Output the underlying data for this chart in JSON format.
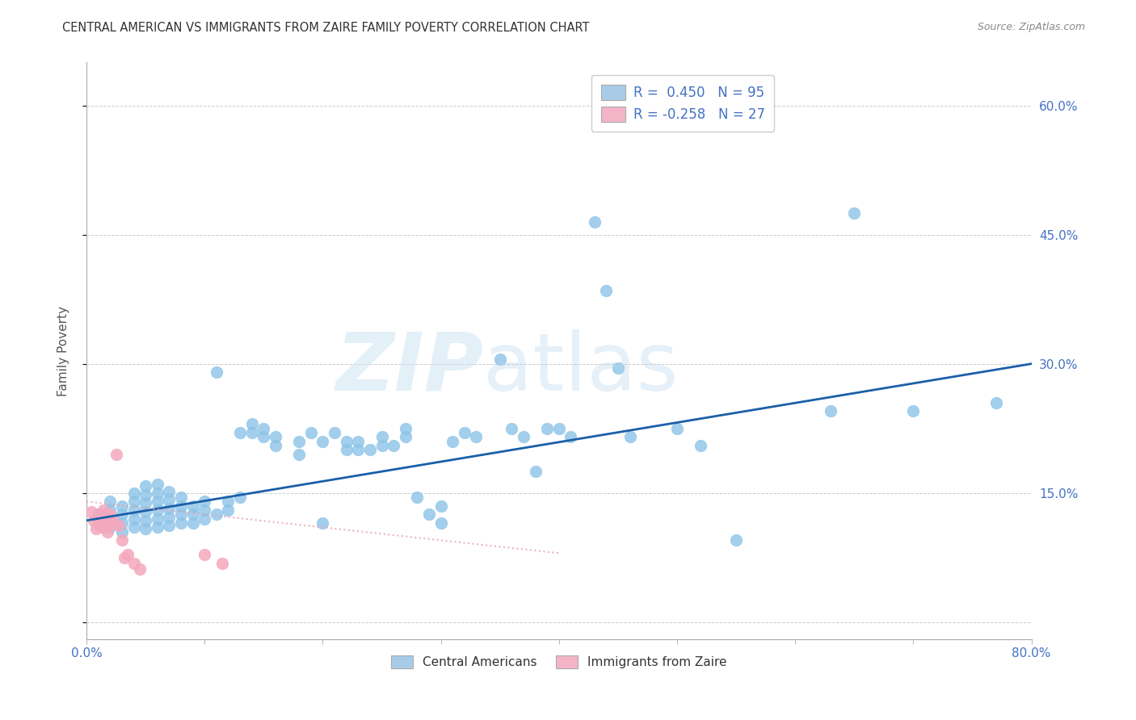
{
  "title": "CENTRAL AMERICAN VS IMMIGRANTS FROM ZAIRE FAMILY POVERTY CORRELATION CHART",
  "source": "Source: ZipAtlas.com",
  "ylabel": "Family Poverty",
  "xlim": [
    0.0,
    0.8
  ],
  "ylim": [
    -0.02,
    0.65
  ],
  "xticks": [
    0.0,
    0.1,
    0.2,
    0.3,
    0.4,
    0.5,
    0.6,
    0.7,
    0.8
  ],
  "yticks": [
    0.0,
    0.15,
    0.3,
    0.45,
    0.6
  ],
  "ytick_labels": [
    "",
    "15.0%",
    "30.0%",
    "45.0%",
    "60.0%"
  ],
  "xtick_labels": [
    "0.0%",
    "",
    "",
    "",
    "",
    "",
    "",
    "",
    "80.0%"
  ],
  "blue_color": "#8cc4e8",
  "pink_color": "#f4a8be",
  "line_blue": "#1a5fa8",
  "line_pink": "#e8a0b0",
  "blue_scatter_x": [
    0.01,
    0.01,
    0.02,
    0.02,
    0.02,
    0.02,
    0.03,
    0.03,
    0.03,
    0.03,
    0.04,
    0.04,
    0.04,
    0.04,
    0.04,
    0.05,
    0.05,
    0.05,
    0.05,
    0.05,
    0.05,
    0.06,
    0.06,
    0.06,
    0.06,
    0.06,
    0.06,
    0.07,
    0.07,
    0.07,
    0.07,
    0.07,
    0.08,
    0.08,
    0.08,
    0.08,
    0.09,
    0.09,
    0.09,
    0.1,
    0.1,
    0.1,
    0.11,
    0.11,
    0.12,
    0.12,
    0.13,
    0.13,
    0.14,
    0.14,
    0.15,
    0.15,
    0.16,
    0.16,
    0.18,
    0.18,
    0.19,
    0.2,
    0.2,
    0.21,
    0.22,
    0.22,
    0.23,
    0.23,
    0.24,
    0.25,
    0.25,
    0.26,
    0.27,
    0.27,
    0.28,
    0.29,
    0.3,
    0.3,
    0.31,
    0.32,
    0.33,
    0.35,
    0.36,
    0.37,
    0.38,
    0.39,
    0.4,
    0.41,
    0.43,
    0.44,
    0.45,
    0.46,
    0.5,
    0.52,
    0.55,
    0.63,
    0.65,
    0.7,
    0.77
  ],
  "blue_scatter_y": [
    0.115,
    0.125,
    0.11,
    0.12,
    0.13,
    0.14,
    0.105,
    0.115,
    0.125,
    0.135,
    0.11,
    0.12,
    0.13,
    0.14,
    0.15,
    0.108,
    0.118,
    0.128,
    0.138,
    0.148,
    0.158,
    0.11,
    0.12,
    0.13,
    0.14,
    0.15,
    0.16,
    0.112,
    0.122,
    0.132,
    0.142,
    0.152,
    0.115,
    0.125,
    0.135,
    0.145,
    0.115,
    0.125,
    0.135,
    0.12,
    0.13,
    0.14,
    0.125,
    0.29,
    0.13,
    0.14,
    0.22,
    0.145,
    0.22,
    0.23,
    0.215,
    0.225,
    0.205,
    0.215,
    0.195,
    0.21,
    0.22,
    0.115,
    0.21,
    0.22,
    0.2,
    0.21,
    0.2,
    0.21,
    0.2,
    0.205,
    0.215,
    0.205,
    0.215,
    0.225,
    0.145,
    0.125,
    0.115,
    0.135,
    0.21,
    0.22,
    0.215,
    0.305,
    0.225,
    0.215,
    0.175,
    0.225,
    0.225,
    0.215,
    0.465,
    0.385,
    0.295,
    0.215,
    0.225,
    0.205,
    0.095,
    0.245,
    0.475,
    0.245,
    0.255
  ],
  "pink_scatter_x": [
    0.004,
    0.006,
    0.008,
    0.01,
    0.01,
    0.012,
    0.013,
    0.014,
    0.015,
    0.015,
    0.016,
    0.017,
    0.018,
    0.019,
    0.02,
    0.021,
    0.022,
    0.023,
    0.025,
    0.027,
    0.03,
    0.032,
    0.035,
    0.04,
    0.045,
    0.1,
    0.115
  ],
  "pink_scatter_y": [
    0.128,
    0.118,
    0.108,
    0.115,
    0.125,
    0.11,
    0.12,
    0.13,
    0.11,
    0.12,
    0.115,
    0.125,
    0.105,
    0.115,
    0.125,
    0.115,
    0.12,
    0.115,
    0.195,
    0.112,
    0.095,
    0.075,
    0.078,
    0.068,
    0.062,
    0.078,
    0.068
  ],
  "blue_line_x0": 0.0,
  "blue_line_y0": 0.118,
  "blue_line_x1": 0.8,
  "blue_line_y1": 0.3,
  "pink_line_x0": 0.0,
  "pink_line_y0": 0.14,
  "pink_line_x1": 0.4,
  "pink_line_y1": 0.08
}
